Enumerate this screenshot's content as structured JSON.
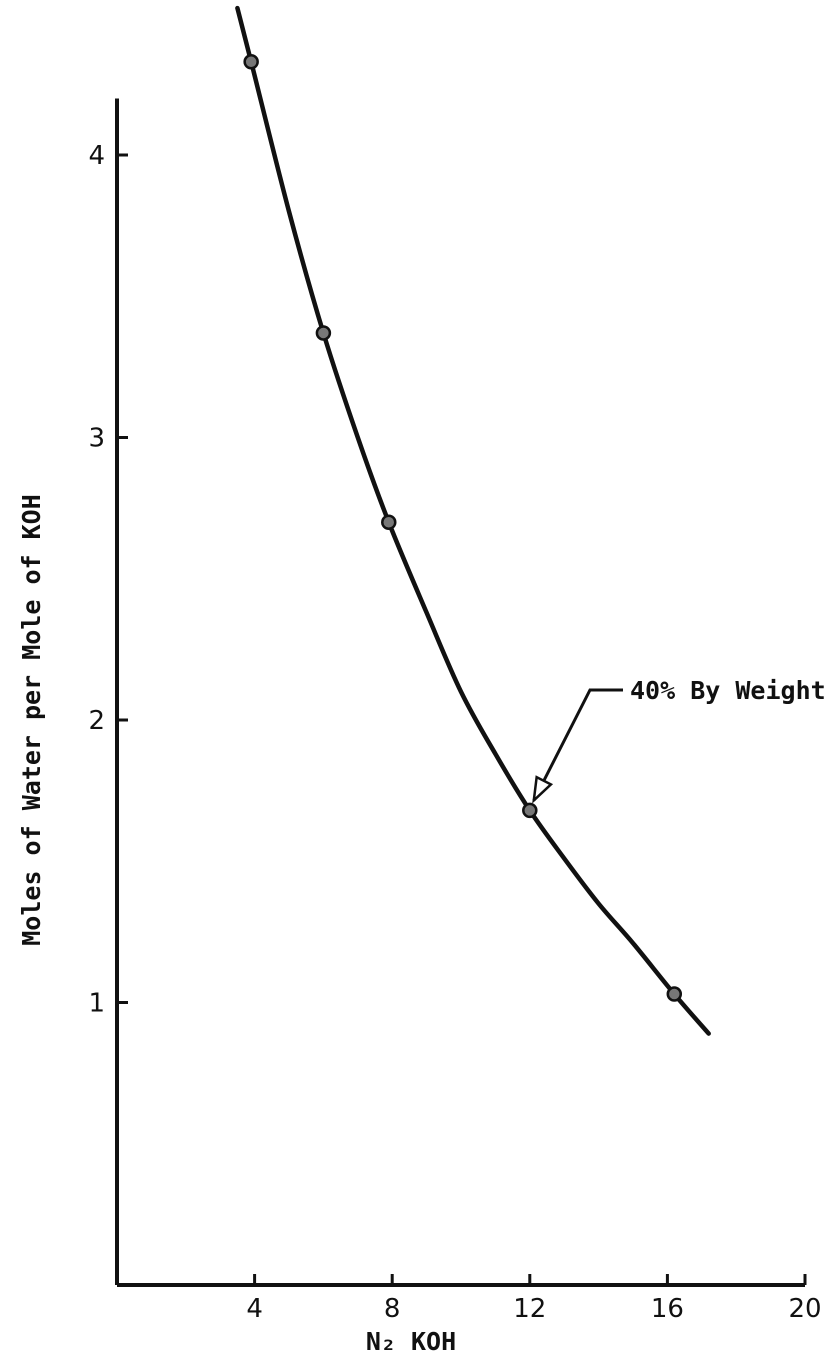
{
  "chart_data": {
    "type": "line",
    "title": "",
    "xlabel": "N₂ KOH",
    "ylabel": "Moles of Water per Mole of KOH",
    "xlim": [
      0,
      20
    ],
    "ylim": [
      0,
      4.2
    ],
    "x_ticks": [
      "4",
      "8",
      "12",
      "16",
      "20"
    ],
    "y_ticks": [
      "1",
      "2",
      "3",
      "4"
    ],
    "grid": false,
    "series": [
      {
        "points": [
          {
            "x": 3.9,
            "y": 4.33
          },
          {
            "x": 6.0,
            "y": 3.37
          },
          {
            "x": 7.9,
            "y": 2.7
          },
          {
            "x": 12.0,
            "y": 1.68
          },
          {
            "x": 16.2,
            "y": 1.03
          }
        ],
        "curve": [
          {
            "x": 3.5,
            "y": 4.52
          },
          {
            "x": 3.9,
            "y": 4.33
          },
          {
            "x": 5.0,
            "y": 3.8
          },
          {
            "x": 6.0,
            "y": 3.37
          },
          {
            "x": 7.0,
            "y": 3.0
          },
          {
            "x": 7.9,
            "y": 2.7
          },
          {
            "x": 9.0,
            "y": 2.38
          },
          {
            "x": 10.0,
            "y": 2.1
          },
          {
            "x": 11.0,
            "y": 1.88
          },
          {
            "x": 12.0,
            "y": 1.68
          },
          {
            "x": 13.0,
            "y": 1.51
          },
          {
            "x": 14.0,
            "y": 1.35
          },
          {
            "x": 15.0,
            "y": 1.21
          },
          {
            "x": 16.2,
            "y": 1.03
          },
          {
            "x": 17.2,
            "y": 0.89
          }
        ]
      }
    ],
    "annotations": [
      {
        "text": "40% By Weight",
        "points_to": {
          "x": 12.0,
          "y": 1.68
        }
      }
    ]
  }
}
